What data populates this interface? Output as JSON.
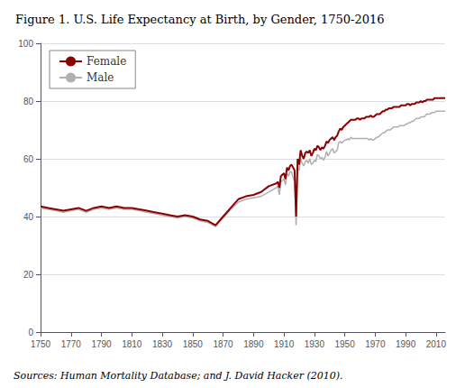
{
  "chart_data": {
    "type": "line",
    "title": "Figure 1. U.S. Life Expectancy at Birth, by Gender, 1750-2016",
    "annotations": [
      "Sources: Human Mortality Database; and J. David Hacker (2010)."
    ],
    "x": [
      1750,
      1755,
      1760,
      1765,
      1770,
      1775,
      1780,
      1785,
      1790,
      1795,
      1800,
      1805,
      1810,
      1815,
      1820,
      1825,
      1830,
      1835,
      1840,
      1845,
      1850,
      1855,
      1860,
      1865,
      1870,
      1875,
      1880,
      1885,
      1890,
      1895,
      1900,
      1905,
      1906,
      1907,
      1908,
      1909,
      1910,
      1911,
      1912,
      1913,
      1914,
      1915,
      1916,
      1917,
      1918,
      1919,
      1920,
      1921,
      1922,
      1923,
      1924,
      1925,
      1926,
      1927,
      1928,
      1929,
      1930,
      1931,
      1932,
      1933,
      1934,
      1935,
      1936,
      1937,
      1938,
      1939,
      1940,
      1941,
      1942,
      1943,
      1944,
      1945,
      1946,
      1947,
      1948,
      1949,
      1950,
      1951,
      1952,
      1953,
      1954,
      1955,
      1956,
      1957,
      1958,
      1959,
      1960,
      1961,
      1962,
      1963,
      1964,
      1965,
      1966,
      1967,
      1968,
      1969,
      1970,
      1971,
      1972,
      1973,
      1974,
      1975,
      1976,
      1977,
      1978,
      1979,
      1980,
      1981,
      1982,
      1983,
      1984,
      1985,
      1986,
      1987,
      1988,
      1989,
      1990,
      1991,
      1992,
      1993,
      1994,
      1995,
      1996,
      1997,
      1998,
      1999,
      2000,
      2001,
      2002,
      2003,
      2004,
      2005,
      2006,
      2007,
      2008,
      2009,
      2010,
      2011,
      2012,
      2013,
      2014,
      2015,
      2016
    ],
    "series": [
      {
        "name": "Female",
        "color": "#8B0000",
        "values": [
          43.5,
          43.0,
          42.5,
          42.0,
          42.5,
          43.0,
          42.0,
          43.0,
          43.5,
          43.0,
          43.5,
          43.0,
          43.0,
          42.5,
          42.0,
          41.5,
          41.0,
          40.5,
          40.0,
          40.5,
          40.0,
          39.0,
          38.5,
          37.0,
          40.0,
          43.0,
          46.0,
          47.0,
          47.5,
          48.5,
          50.5,
          51.5,
          52.0,
          50.0,
          54.0,
          54.5,
          55.0,
          53.0,
          57.0,
          56.0,
          57.5,
          58.0,
          57.0,
          56.0,
          40.0,
          60.0,
          58.0,
          63.0,
          61.0,
          60.0,
          62.0,
          62.5,
          62.0,
          63.0,
          61.0,
          62.0,
          63.5,
          63.0,
          64.5,
          64.0,
          63.0,
          64.0,
          63.5,
          64.5,
          66.0,
          65.5,
          66.5,
          67.0,
          67.5,
          66.5,
          67.5,
          68.0,
          69.5,
          70.5,
          70.0,
          71.0,
          71.5,
          72.0,
          72.5,
          73.0,
          73.5,
          73.5,
          73.5,
          73.5,
          74.0,
          74.0,
          73.5,
          74.0,
          74.0,
          74.0,
          74.5,
          74.5,
          74.5,
          75.0,
          74.5,
          74.5,
          75.0,
          75.5,
          75.5,
          75.5,
          76.0,
          76.5,
          76.5,
          77.0,
          77.0,
          77.5,
          77.5,
          77.5,
          78.0,
          78.0,
          78.0,
          78.0,
          78.0,
          78.5,
          78.5,
          78.5,
          78.5,
          79.0,
          79.0,
          78.5,
          79.0,
          79.0,
          79.0,
          79.5,
          79.5,
          79.5,
          80.0,
          79.5,
          80.0,
          80.0,
          80.5,
          80.5,
          80.5,
          80.5,
          80.5,
          81.0,
          81.0,
          81.0,
          81.0,
          81.0,
          81.0,
          81.0,
          81.0
        ]
      },
      {
        "name": "Male",
        "color": "#B0B0B0",
        "values": [
          43.0,
          42.5,
          42.0,
          41.5,
          42.0,
          42.5,
          41.5,
          42.5,
          43.0,
          42.5,
          43.0,
          42.5,
          42.5,
          42.0,
          41.5,
          41.0,
          40.5,
          40.0,
          39.5,
          40.0,
          39.5,
          38.5,
          38.0,
          36.5,
          39.5,
          42.5,
          45.0,
          46.0,
          46.5,
          47.0,
          48.5,
          50.0,
          50.5,
          47.5,
          52.0,
          52.5,
          53.0,
          51.0,
          55.0,
          54.0,
          55.5,
          55.5,
          53.5,
          52.0,
          37.0,
          57.0,
          56.0,
          60.0,
          58.5,
          57.5,
          59.0,
          59.5,
          58.5,
          60.0,
          58.0,
          58.5,
          59.5,
          59.0,
          61.5,
          61.0,
          60.0,
          60.5,
          59.5,
          60.5,
          62.5,
          61.0,
          62.0,
          63.0,
          63.5,
          62.0,
          62.5,
          63.0,
          65.5,
          66.0,
          65.5,
          66.0,
          66.5,
          66.5,
          67.0,
          66.5,
          67.5,
          67.0,
          67.0,
          67.0,
          67.0,
          67.0,
          67.0,
          67.0,
          67.0,
          67.0,
          67.0,
          67.0,
          66.5,
          67.0,
          66.5,
          66.5,
          67.0,
          67.5,
          67.5,
          68.0,
          68.5,
          69.0,
          69.0,
          69.5,
          70.0,
          70.0,
          70.0,
          70.5,
          71.0,
          71.0,
          71.0,
          71.0,
          71.5,
          71.5,
          71.5,
          71.5,
          72.0,
          72.0,
          72.5,
          72.5,
          73.0,
          73.0,
          73.5,
          74.0,
          74.0,
          74.0,
          74.5,
          74.5,
          74.5,
          75.0,
          75.5,
          75.5,
          75.5,
          76.0,
          76.0,
          76.0,
          76.5,
          76.5,
          76.5,
          76.5,
          76.5,
          76.5,
          76.5
        ]
      }
    ],
    "xlim": [
      1750,
      2016
    ],
    "xticks": [
      1750,
      1770,
      1790,
      1810,
      1830,
      1850,
      1870,
      1890,
      1910,
      1930,
      1950,
      1970,
      1990,
      2010
    ],
    "ylim": [
      0,
      100
    ],
    "yticks": [
      0,
      20,
      40,
      60,
      80,
      100
    ],
    "grid": true,
    "legend": "upper left"
  }
}
